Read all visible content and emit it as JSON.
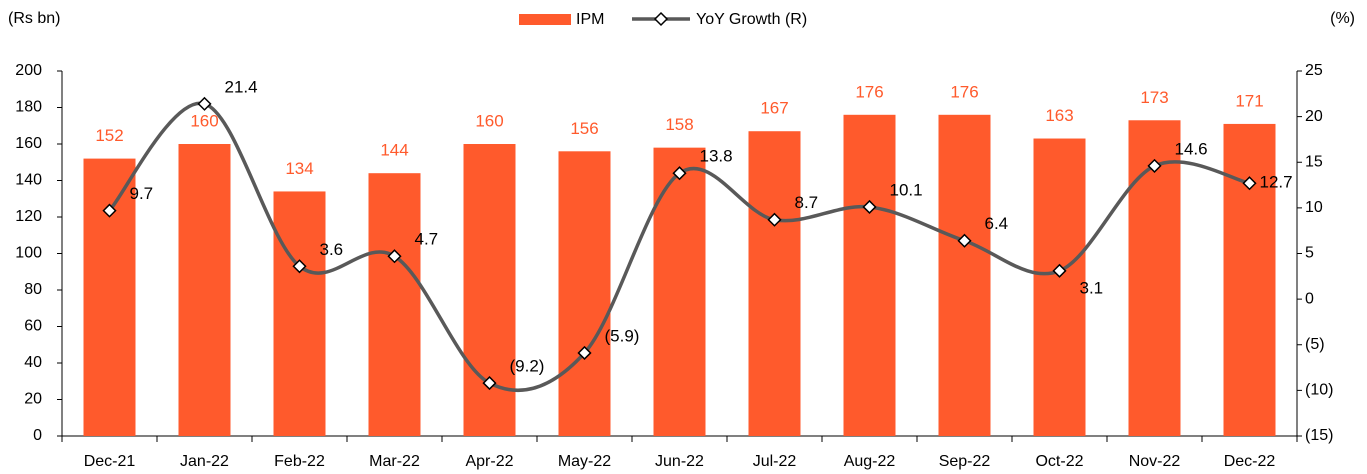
{
  "chart_data": {
    "type": "bar",
    "y_label": "(Rs bn)",
    "y2_label": "(%)",
    "categories": [
      "Dec-21",
      "Jan-22",
      "Feb-22",
      "Mar-22",
      "Apr-22",
      "May-22",
      "Jun-22",
      "Jul-22",
      "Aug-22",
      "Sep-22",
      "Oct-22",
      "Nov-22",
      "Dec-22"
    ],
    "series": [
      {
        "name": "IPM",
        "type": "bar",
        "color": "#ff5a2c",
        "values": [
          152,
          160,
          134,
          144,
          160,
          156,
          158,
          167,
          176,
          176,
          163,
          173,
          171
        ]
      },
      {
        "name": "YoY Growth (R)",
        "type": "line",
        "axis": "y2",
        "color": "#595959",
        "values": [
          9.7,
          21.4,
          3.6,
          4.7,
          -9.2,
          -5.9,
          13.8,
          8.7,
          10.1,
          6.4,
          3.1,
          14.6,
          12.7
        ],
        "value_labels": [
          "9.7",
          "21.4",
          "3.6",
          "4.7",
          "(9.2)",
          "(5.9)",
          "13.8",
          "8.7",
          "10.1",
          "6.4",
          "3.1",
          "14.6",
          "12.7"
        ]
      }
    ],
    "ylim": [
      0,
      200
    ],
    "yticks": [
      0,
      20,
      40,
      60,
      80,
      100,
      120,
      140,
      160,
      180,
      200
    ],
    "y2lim": [
      -15,
      25
    ],
    "y2ticks": [
      {
        "value": -15,
        "label": "(15)"
      },
      {
        "value": -10,
        "label": "(10)"
      },
      {
        "value": -5,
        "label": "(5)"
      },
      0,
      5,
      10,
      15,
      20,
      25
    ],
    "legend": "top"
  }
}
